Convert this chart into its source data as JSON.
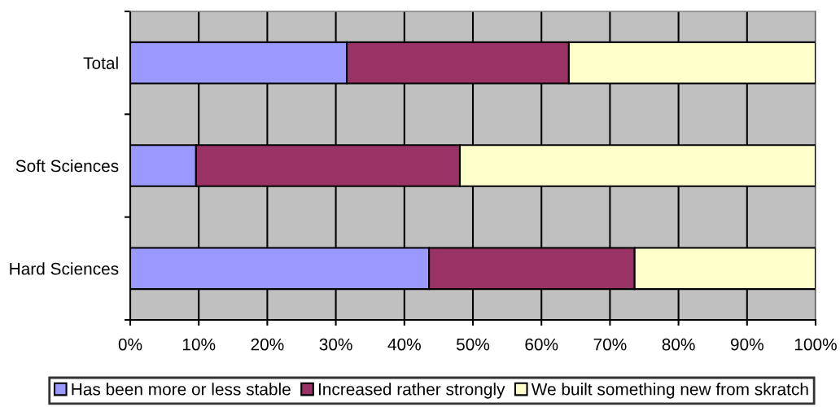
{
  "chart_data": {
    "type": "bar",
    "orientation": "horizontal",
    "stacked": true,
    "categories": [
      "Total",
      "Soft Sciences",
      "Hard Sciences"
    ],
    "series": [
      {
        "name": "Has been more or less stable",
        "color": "#9999ff",
        "values": [
          31.6,
          9.6,
          43.6
        ]
      },
      {
        "name": "Increased rather strongly",
        "color": "#993366",
        "values": [
          32.4,
          38.5,
          30.0
        ]
      },
      {
        "name": "We built something new from skratch",
        "color": "#ffffcc",
        "values": [
          36.0,
          51.9,
          26.4
        ]
      }
    ],
    "xlim": [
      0,
      100
    ],
    "xticks": [
      {
        "value": 0,
        "label": "0%"
      },
      {
        "value": 10,
        "label": "10%"
      },
      {
        "value": 20,
        "label": "20%"
      },
      {
        "value": 30,
        "label": "30%"
      },
      {
        "value": 40,
        "label": "40%"
      },
      {
        "value": 50,
        "label": "50%"
      },
      {
        "value": 60,
        "label": "60%"
      },
      {
        "value": 70,
        "label": "70%"
      },
      {
        "value": 80,
        "label": "80%"
      },
      {
        "value": 90,
        "label": "90%"
      },
      {
        "value": 100,
        "label": "100%"
      }
    ],
    "grid": "x",
    "legend": "bottom"
  }
}
